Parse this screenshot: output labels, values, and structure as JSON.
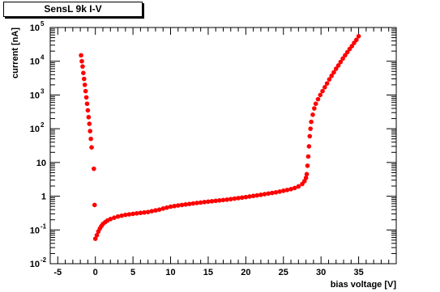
{
  "chart_data": {
    "type": "scatter",
    "title": "SensL 9k I-V",
    "xlabel": "bias voltage [V]",
    "ylabel": "current [nA]",
    "xlim": [
      -6,
      40
    ],
    "ylim": [
      0.01,
      100000
    ],
    "y_scale": "log",
    "grid": false,
    "marker_color": "#ff0000",
    "x_ticks": [
      -5,
      0,
      5,
      10,
      15,
      20,
      25,
      30,
      35
    ],
    "x_tick_labels": [
      "-5",
      "0",
      "5",
      "10",
      "15",
      "20",
      "25",
      "30",
      "35"
    ],
    "y_ticks": [
      0.01,
      0.1,
      1,
      10,
      100,
      1000,
      10000,
      100000
    ],
    "y_tick_labels": [
      {
        "base": "10",
        "exp": "-2"
      },
      {
        "base": "10",
        "exp": "-1"
      },
      {
        "base": "1",
        "exp": ""
      },
      {
        "base": "10",
        "exp": ""
      },
      {
        "base": "10",
        "exp": "2"
      },
      {
        "base": "10",
        "exp": "3"
      },
      {
        "base": "10",
        "exp": "4"
      },
      {
        "base": "10",
        "exp": "5"
      }
    ],
    "series": [
      {
        "points": [
          [
            -1.9,
            15000
          ],
          [
            -1.8,
            10000
          ],
          [
            -1.7,
            7000
          ],
          [
            -1.6,
            4500
          ],
          [
            -1.5,
            3000
          ],
          [
            -1.4,
            2000
          ],
          [
            -1.3,
            1300
          ],
          [
            -1.2,
            850
          ],
          [
            -1.1,
            550
          ],
          [
            -1.0,
            350
          ],
          [
            -0.9,
            220
          ],
          [
            -0.8,
            140
          ],
          [
            -0.7,
            85
          ],
          [
            -0.6,
            50
          ],
          [
            -0.5,
            28
          ],
          [
            -0.2,
            6.5
          ],
          [
            -0.1,
            0.55
          ],
          [
            0,
            0.055
          ],
          [
            0.2,
            0.07
          ],
          [
            0.4,
            0.09
          ],
          [
            0.6,
            0.11
          ],
          [
            0.8,
            0.13
          ],
          [
            1,
            0.15
          ],
          [
            1.3,
            0.17
          ],
          [
            1.6,
            0.19
          ],
          [
            2,
            0.21
          ],
          [
            2.5,
            0.23
          ],
          [
            3,
            0.25
          ],
          [
            3.5,
            0.265
          ],
          [
            4,
            0.28
          ],
          [
            4.5,
            0.29
          ],
          [
            5,
            0.3
          ],
          [
            5.5,
            0.31
          ],
          [
            6,
            0.32
          ],
          [
            6.5,
            0.33
          ],
          [
            7,
            0.34
          ],
          [
            7.5,
            0.36
          ],
          [
            8,
            0.38
          ],
          [
            8.5,
            0.4
          ],
          [
            9,
            0.43
          ],
          [
            9.5,
            0.46
          ],
          [
            10,
            0.49
          ],
          [
            10.5,
            0.51
          ],
          [
            11,
            0.53
          ],
          [
            11.5,
            0.55
          ],
          [
            12,
            0.57
          ],
          [
            12.5,
            0.59
          ],
          [
            13,
            0.61
          ],
          [
            13.5,
            0.63
          ],
          [
            14,
            0.65
          ],
          [
            14.5,
            0.67
          ],
          [
            15,
            0.69
          ],
          [
            15.5,
            0.71
          ],
          [
            16,
            0.73
          ],
          [
            16.5,
            0.75
          ],
          [
            17,
            0.77
          ],
          [
            17.5,
            0.79
          ],
          [
            18,
            0.82
          ],
          [
            18.5,
            0.85
          ],
          [
            19,
            0.88
          ],
          [
            19.5,
            0.91
          ],
          [
            20,
            0.94
          ],
          [
            20.5,
            0.98
          ],
          [
            21,
            1.02
          ],
          [
            21.5,
            1.06
          ],
          [
            22,
            1.1
          ],
          [
            22.5,
            1.15
          ],
          [
            23,
            1.2
          ],
          [
            23.5,
            1.25
          ],
          [
            24,
            1.3
          ],
          [
            24.5,
            1.37
          ],
          [
            25,
            1.45
          ],
          [
            25.5,
            1.53
          ],
          [
            26,
            1.62
          ],
          [
            26.5,
            1.75
          ],
          [
            27,
            1.95
          ],
          [
            27.5,
            2.3
          ],
          [
            27.8,
            2.8
          ],
          [
            28.0,
            3.5
          ],
          [
            28.1,
            4.5
          ],
          [
            28.2,
            8
          ],
          [
            28.3,
            15
          ],
          [
            28.4,
            30
          ],
          [
            28.5,
            60
          ],
          [
            28.6,
            100
          ],
          [
            28.7,
            160
          ],
          [
            28.9,
            260
          ],
          [
            29.1,
            400
          ],
          [
            29.3,
            550
          ],
          [
            29.6,
            750
          ],
          [
            29.9,
            1000
          ],
          [
            30.2,
            1300
          ],
          [
            30.5,
            1700
          ],
          [
            30.8,
            2200
          ],
          [
            31.1,
            2900
          ],
          [
            31.4,
            3700
          ],
          [
            31.7,
            4700
          ],
          [
            32.0,
            6000
          ],
          [
            32.3,
            7500
          ],
          [
            32.6,
            9500
          ],
          [
            32.9,
            12000
          ],
          [
            33.2,
            15000
          ],
          [
            33.5,
            18500
          ],
          [
            33.8,
            23000
          ],
          [
            34.1,
            28000
          ],
          [
            34.4,
            35000
          ],
          [
            34.7,
            43000
          ],
          [
            35.0,
            55000
          ]
        ]
      }
    ]
  }
}
